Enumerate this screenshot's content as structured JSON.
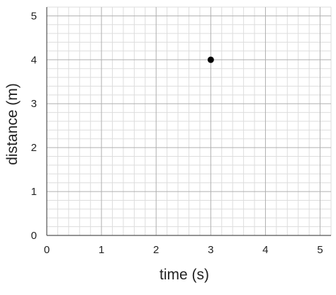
{
  "chart_data": {
    "type": "scatter",
    "title": "",
    "xlabel": "time (s)",
    "ylabel": "distance (m)",
    "xlim": [
      0,
      5.2
    ],
    "ylim": [
      0,
      5.2
    ],
    "x_ticks": [
      "0",
      "1",
      "2",
      "3",
      "4",
      "5"
    ],
    "y_ticks": [
      "0",
      "1",
      "2",
      "3",
      "4",
      "5"
    ],
    "grid": true,
    "minor_grid": true,
    "points": [
      {
        "x": 3,
        "y": 4
      }
    ]
  },
  "colors": {
    "point": "#000000",
    "major_grid": "#b0b0b0",
    "minor_grid": "#dddddd",
    "axis": "#555555"
  }
}
